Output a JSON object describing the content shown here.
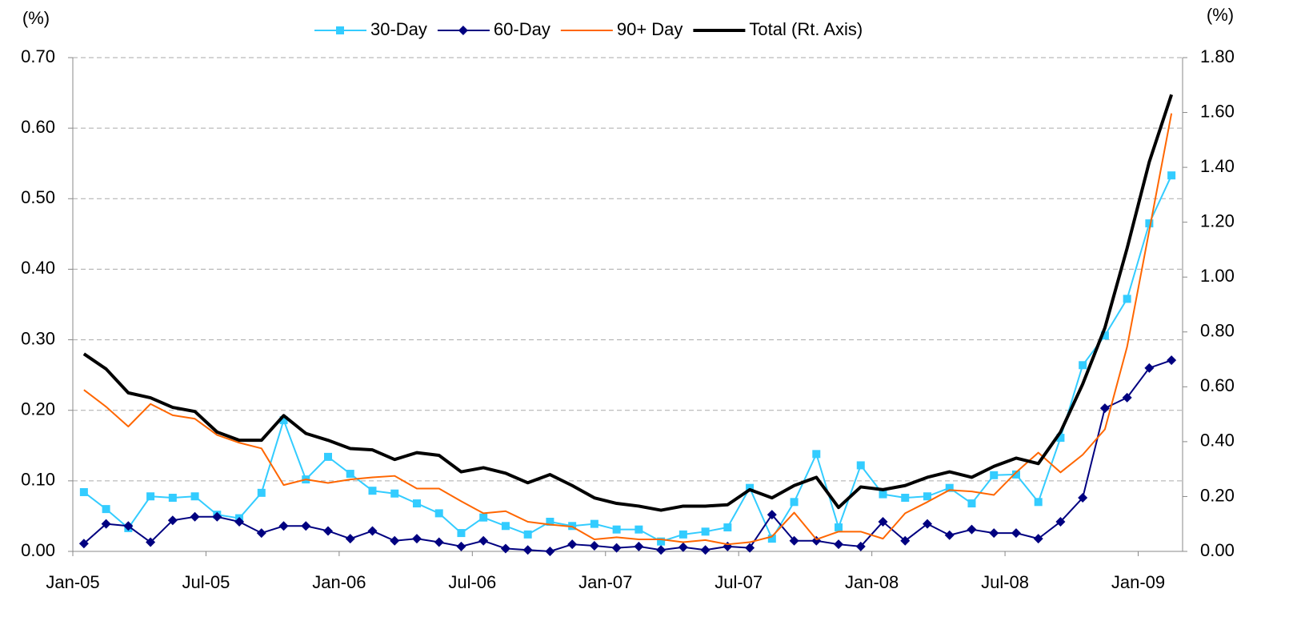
{
  "chart_data": {
    "type": "line",
    "y_label": "(%)",
    "y2_label": "(%)",
    "categories": [
      "Jan-05",
      null,
      null,
      null,
      null,
      null,
      "Jul-05",
      null,
      null,
      null,
      null,
      null,
      "Jan-06",
      null,
      null,
      null,
      null,
      null,
      "Jul-06",
      null,
      null,
      null,
      null,
      null,
      "Jan-07",
      null,
      null,
      null,
      null,
      null,
      "Jul-07",
      null,
      null,
      null,
      null,
      null,
      "Jan-08",
      null,
      null,
      null,
      null,
      null,
      "Jul-08",
      null,
      null,
      null,
      null,
      null,
      "Jan-09",
      null
    ],
    "series": [
      {
        "name": "30-Day",
        "color": "#33ccff",
        "marker": "square",
        "line_width": 2,
        "values": [
          0.084,
          0.06,
          0.033,
          0.078,
          0.076,
          0.078,
          0.052,
          0.047,
          0.083,
          0.186,
          0.102,
          0.134,
          0.11,
          0.086,
          0.082,
          0.068,
          0.054,
          0.026,
          0.048,
          0.036,
          0.024,
          0.042,
          0.036,
          0.039,
          0.031,
          0.031,
          0.014,
          0.024,
          0.028,
          0.034,
          0.09,
          0.018,
          0.07,
          0.138,
          0.034,
          0.122,
          0.081,
          0.076,
          0.078,
          0.09,
          0.068,
          0.108,
          0.109,
          0.07,
          0.161,
          0.264,
          0.306,
          0.358,
          0.465,
          0.533
        ]
      },
      {
        "name": "60-Day",
        "color": "#000080",
        "marker": "diamond",
        "line_width": 2,
        "values": [
          0.011,
          0.039,
          0.036,
          0.013,
          0.044,
          0.049,
          0.049,
          0.042,
          0.026,
          0.036,
          0.036,
          0.029,
          0.018,
          0.029,
          0.015,
          0.018,
          0.013,
          0.007,
          0.015,
          0.004,
          0.002,
          0.0,
          0.01,
          0.008,
          0.005,
          0.007,
          0.002,
          0.006,
          0.002,
          0.007,
          0.005,
          0.052,
          0.015,
          0.015,
          0.01,
          0.007,
          0.042,
          0.015,
          0.039,
          0.023,
          0.031,
          0.026,
          0.026,
          0.018,
          0.042,
          0.076,
          0.203,
          0.218,
          0.26,
          0.271
        ]
      },
      {
        "name": "90+ Day",
        "color": "#ff6600",
        "line_width": 2,
        "values": [
          0.229,
          0.205,
          0.177,
          0.209,
          0.193,
          0.188,
          0.165,
          0.154,
          0.146,
          0.094,
          0.102,
          0.097,
          0.102,
          0.105,
          0.107,
          0.089,
          0.089,
          0.071,
          0.054,
          0.057,
          0.042,
          0.038,
          0.035,
          0.017,
          0.02,
          0.017,
          0.017,
          0.013,
          0.016,
          0.01,
          0.013,
          0.021,
          0.055,
          0.017,
          0.028,
          0.028,
          0.018,
          0.054,
          0.07,
          0.087,
          0.085,
          0.08,
          0.112,
          0.14,
          0.112,
          0.137,
          0.173,
          0.29,
          0.455,
          0.621
        ]
      },
      {
        "name": "Total (Rt. Axis)",
        "color": "#000000",
        "axis": "y2",
        "line_width": 4,
        "values": [
          0.72,
          0.665,
          0.578,
          0.56,
          0.525,
          0.51,
          0.435,
          0.405,
          0.405,
          0.495,
          0.43,
          0.405,
          0.375,
          0.37,
          0.335,
          0.36,
          0.35,
          0.29,
          0.305,
          0.285,
          0.25,
          0.28,
          0.24,
          0.195,
          0.175,
          0.165,
          0.15,
          0.165,
          0.165,
          0.17,
          0.225,
          0.195,
          0.24,
          0.27,
          0.16,
          0.235,
          0.225,
          0.24,
          0.27,
          0.29,
          0.27,
          0.31,
          0.34,
          0.32,
          0.435,
          0.61,
          0.815,
          1.105,
          1.42,
          1.665
        ]
      }
    ],
    "ylim": [
      0,
      0.7
    ],
    "yticks": [
      {
        "value": 0,
        "label": "0.00"
      },
      {
        "value": 0.1,
        "label": "0.10"
      },
      {
        "value": 0.2,
        "label": "0.20"
      },
      {
        "value": 0.3,
        "label": "0.30"
      },
      {
        "value": 0.4,
        "label": "0.40"
      },
      {
        "value": 0.5,
        "label": "0.50"
      },
      {
        "value": 0.6,
        "label": "0.60"
      },
      {
        "value": 0.7,
        "label": "0.70"
      }
    ],
    "y2lim": [
      0,
      1.8
    ],
    "y2ticks": [
      {
        "value": 0,
        "label": "0.00"
      },
      {
        "value": 0.2,
        "label": "0.20"
      },
      {
        "value": 0.4,
        "label": "0.40"
      },
      {
        "value": 0.6,
        "label": "0.60"
      },
      {
        "value": 0.8,
        "label": "0.80"
      },
      {
        "value": 1.0,
        "label": "1.00"
      },
      {
        "value": 1.2,
        "label": "1.20"
      },
      {
        "value": 1.4,
        "label": "1.40"
      },
      {
        "value": 1.6,
        "label": "1.60"
      },
      {
        "value": 1.8,
        "label": "1.80"
      }
    ],
    "grid": true,
    "legend": "top"
  }
}
